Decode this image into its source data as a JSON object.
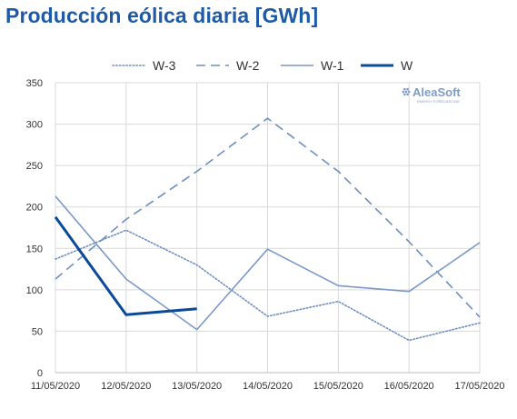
{
  "chart_data": {
    "type": "line",
    "title": "Producción eólica diaria [GWh]",
    "xlabel": "",
    "ylabel": "",
    "categories": [
      "11/05/2020",
      "12/05/2020",
      "13/05/2020",
      "14/05/2020",
      "15/05/2020",
      "16/05/2020",
      "17/05/2020"
    ],
    "ylim": [
      0,
      350
    ],
    "yticks": [
      0,
      50,
      100,
      150,
      200,
      250,
      300,
      350
    ],
    "grid": true,
    "legend": "top",
    "series": [
      {
        "name": "W-3",
        "style": "dotted",
        "color": "#6f8fbf",
        "values": [
          137,
          172,
          130,
          68,
          86,
          39,
          60
        ]
      },
      {
        "name": "W-2",
        "style": "dashed",
        "color": "#6f8fbf",
        "values": [
          113,
          185,
          243,
          307,
          243,
          158,
          67
        ]
      },
      {
        "name": "W-1",
        "style": "solid",
        "color": "#7b98c6",
        "values": [
          213,
          113,
          52,
          149,
          105,
          98,
          157
        ]
      },
      {
        "name": "W",
        "style": "solid-bold",
        "color": "#0b4a99",
        "values": [
          188,
          70,
          77,
          null,
          null,
          null,
          null
        ]
      }
    ]
  },
  "logo": {
    "name": "AleaSoft",
    "tagline": "ENERGY FORECASTING",
    "color": "#7d9cc9"
  }
}
